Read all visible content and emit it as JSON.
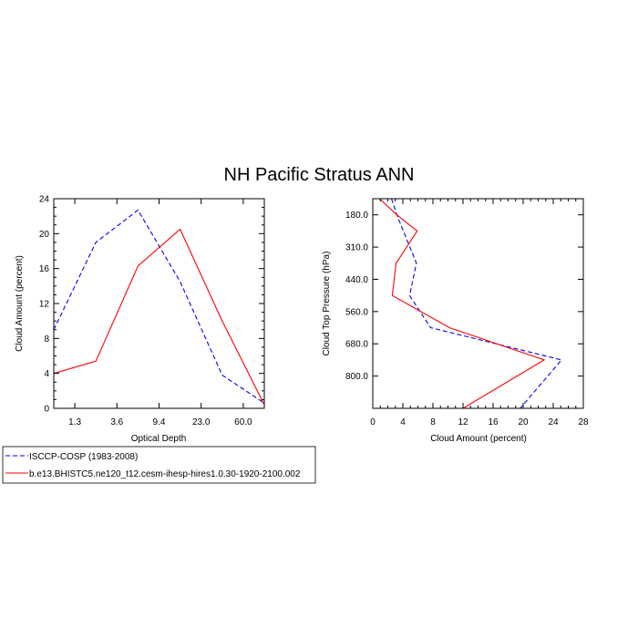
{
  "title": "NH Pacific Stratus ANN",
  "legend": {
    "entries": [
      {
        "label": "ISCCP-COSP (1983-2008)",
        "color": "#0000ff",
        "dash": true
      },
      {
        "label": "b.e13.BHISTC5.ne120_t12.cesm-ihesp-hires1.0.30-1920-2100.002",
        "color": "#ff0000",
        "dash": false
      }
    ]
  },
  "chart_data": [
    {
      "type": "line",
      "xlabel": "Optical Depth",
      "ylabel": "Cloud Amount (percent)",
      "x_tick_labels": [
        "1.3",
        "3.6",
        "9.4",
        "23.0",
        "60.0"
      ],
      "x_tick_positions": [
        1,
        2,
        3,
        4,
        5
      ],
      "xlim": [
        0.5,
        5.5
      ],
      "ylim": [
        0,
        24
      ],
      "y_ticks": [
        0,
        4,
        8,
        12,
        16,
        20,
        24
      ],
      "series": [
        {
          "name": "ISCCP-COSP (1983-2008)",
          "color": "#0000ff",
          "dash": true,
          "x": [
            0.5,
            1.5,
            2.5,
            3.5,
            4.5,
            5.5
          ],
          "y": [
            9.0,
            19.0,
            22.7,
            14.5,
            3.8,
            0.6
          ]
        },
        {
          "name": "b.e13.BHISTC5.ne120_t12.cesm-ihesp-hires1.0.30-1920-2100.002",
          "color": "#ff0000",
          "dash": false,
          "x": [
            0.5,
            1.5,
            2.5,
            3.5,
            4.5,
            5.5
          ],
          "y": [
            4.0,
            5.4,
            16.3,
            20.5,
            10.0,
            0.4
          ]
        }
      ]
    },
    {
      "type": "line",
      "xlabel": "Cloud Amount (percent)",
      "ylabel": "Cloud Top Pressure (hPa)",
      "xlim": [
        0,
        28
      ],
      "x_ticks": [
        0,
        4,
        8,
        12,
        16,
        20,
        24,
        28
      ],
      "y_tick_labels": [
        "180.0",
        "310.0",
        "440.0",
        "560.0",
        "680.0",
        "800.0"
      ],
      "y_tick_positions": [
        1,
        2,
        3,
        4,
        5,
        6
      ],
      "ylim": [
        0.5,
        7.0
      ],
      "y_reversed": true,
      "series": [
        {
          "name": "ISCCP-COSP (1983-2008)",
          "color": "#0000ff",
          "dash": true,
          "x": [
            2.5,
            3.2,
            5.8,
            4.9,
            7.7,
            25.1,
            19.6
          ],
          "y": [
            0.5,
            1.0,
            2.5,
            3.5,
            4.5,
            5.5,
            7.0
          ]
        },
        {
          "name": "b.e13.BHISTC5.ne120_t12.cesm-ihesp-hires1.0.30-1920-2100.002",
          "color": "#ff0000",
          "dash": false,
          "x": [
            0.9,
            3.2,
            5.9,
            3.1,
            2.6,
            10.2,
            22.8,
            12.0
          ],
          "y": [
            0.5,
            1.0,
            1.5,
            2.5,
            3.5,
            4.5,
            5.5,
            7.0
          ]
        }
      ]
    }
  ]
}
